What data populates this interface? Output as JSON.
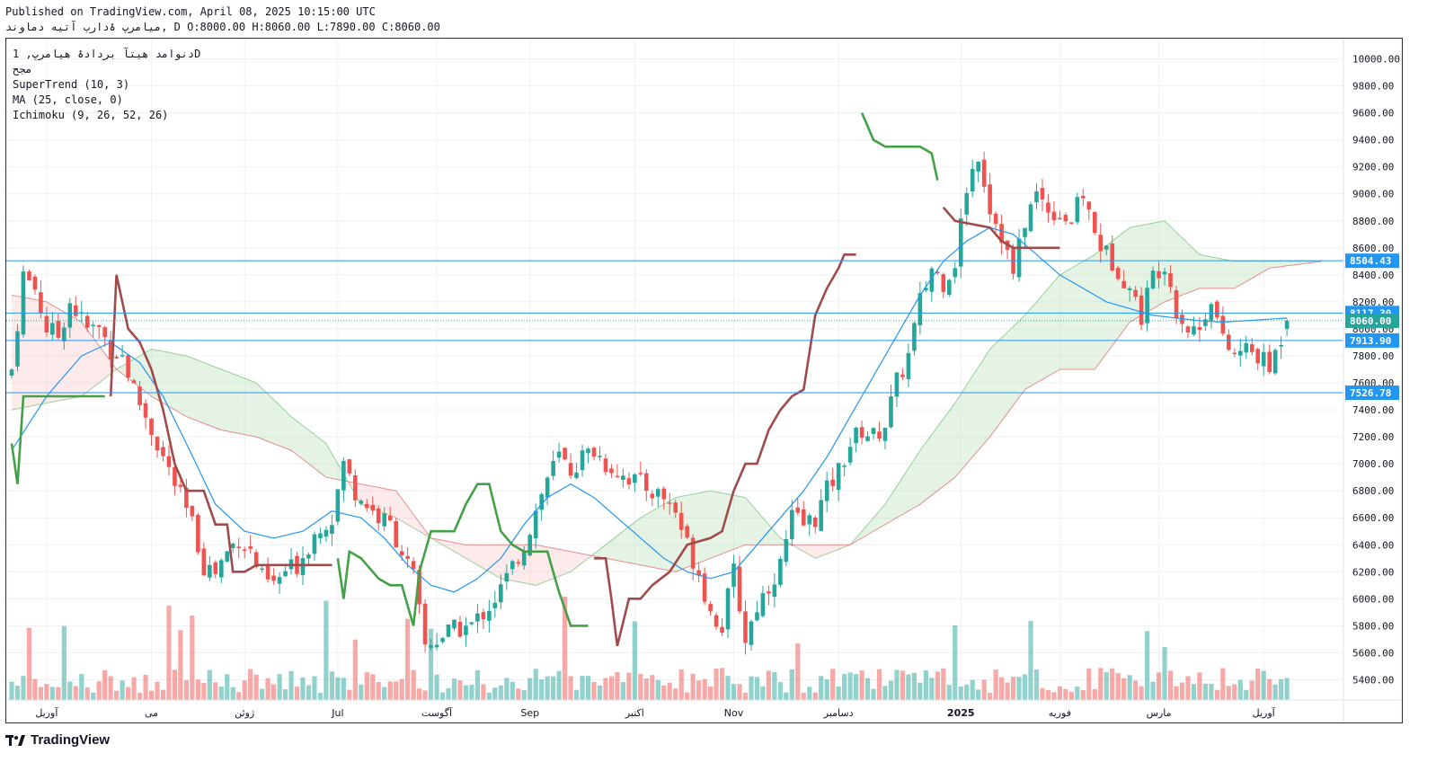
{
  "header": {
    "published": "Published on TradingView.com, April 08, 2025 10:15:00 UTC",
    "ohlc": "میامرپ ۀدارب آتیه دماوند, D O:8000.00 H:8060.00 L:7890.00 C:8060.00"
  },
  "legend": {
    "symbol": "دنوامد هیتآ بردادۀ هیامرپ, 1D",
    "exchange": "مجح",
    "supertrend": "SuperTrend (10, 3)",
    "ma": "MA (25, close, 0)",
    "ichimoku": "Ichimoku (9, 26, 52, 26)"
  },
  "brand": {
    "logo_text": "TradingView"
  },
  "colors": {
    "up": "#26a69a",
    "down": "#ef5350",
    "supertrend_up": "#43a047",
    "supertrend_down": "#a04a4a",
    "ma": "#2196f3",
    "hline": "#2196f3",
    "cloud_bull": "#a5d6a7",
    "cloud_bear": "#f8bbbb"
  },
  "chart_data": {
    "type": "candlestick",
    "y_axis": {
      "min": 5250,
      "max": 10150,
      "ticks": [
        5400,
        5600,
        5800,
        6000,
        6200,
        6400,
        6600,
        6800,
        7000,
        7200,
        7400,
        7600,
        7800,
        8000,
        8200,
        8400,
        8600,
        8800,
        9000,
        9200,
        9400,
        9600,
        9800,
        10000
      ]
    },
    "x_labels": [
      "آوریل",
      "می",
      "ژوئن",
      "Jul",
      "آگوست",
      "Sep",
      "اکتبر",
      "Nov",
      "دسامبر",
      "2025",
      "فوریه",
      "مارس",
      "آوریل"
    ],
    "x_label_bar_index": [
      6,
      24,
      40,
      56,
      73,
      89,
      107,
      124,
      142,
      163,
      180,
      197,
      215
    ],
    "price_labels": [
      {
        "text": "8504.43",
        "value": 8504.43
      },
      {
        "text": "8117.30",
        "value": 8117.3
      },
      {
        "text": "8060.00",
        "value": 8060.0
      },
      {
        "text": "7913.90",
        "value": 7913.9
      },
      {
        "text": "7526.78",
        "value": 7526.78
      }
    ],
    "hlines": [
      8504.43,
      8117.3,
      7913.9,
      7526.78
    ],
    "last_close": 8060.0,
    "bars_count": 220,
    "close_anchors": [
      [
        0,
        7700
      ],
      [
        2,
        8400
      ],
      [
        4,
        8300
      ],
      [
        6,
        8000
      ],
      [
        8,
        7950
      ],
      [
        10,
        8200
      ],
      [
        13,
        8000
      ],
      [
        15,
        8000
      ],
      [
        17,
        7850
      ],
      [
        19,
        7800
      ],
      [
        21,
        7550
      ],
      [
        23,
        7350
      ],
      [
        25,
        7150
      ],
      [
        27,
        6950
      ],
      [
        29,
        6750
      ],
      [
        31,
        6550
      ],
      [
        33,
        6250
      ],
      [
        35,
        6200
      ],
      [
        37,
        6350
      ],
      [
        39,
        6450
      ],
      [
        41,
        6350
      ],
      [
        43,
        6150
      ],
      [
        45,
        6100
      ],
      [
        47,
        6200
      ],
      [
        49,
        6250
      ],
      [
        51,
        6400
      ],
      [
        53,
        6550
      ],
      [
        55,
        6600
      ],
      [
        57,
        7000
      ],
      [
        59,
        6800
      ],
      [
        61,
        6700
      ],
      [
        63,
        6600
      ],
      [
        65,
        6550
      ],
      [
        67,
        6350
      ],
      [
        69,
        6150
      ],
      [
        71,
        5650
      ],
      [
        73,
        5700
      ],
      [
        75,
        5750
      ],
      [
        77,
        5780
      ],
      [
        79,
        5800
      ],
      [
        81,
        5900
      ],
      [
        83,
        6000
      ],
      [
        85,
        6150
      ],
      [
        88,
        6400
      ],
      [
        90,
        6650
      ],
      [
        92,
        6900
      ],
      [
        94,
        7050
      ],
      [
        96,
        6950
      ],
      [
        98,
        7050
      ],
      [
        100,
        7100
      ],
      [
        102,
        7000
      ],
      [
        104,
        6950
      ],
      [
        106,
        6900
      ],
      [
        108,
        6850
      ],
      [
        110,
        6800
      ],
      [
        112,
        6750
      ],
      [
        114,
        6650
      ],
      [
        116,
        6400
      ],
      [
        118,
        6200
      ],
      [
        120,
        5900
      ],
      [
        122,
        5800
      ],
      [
        124,
        6200
      ],
      [
        126,
        5700
      ],
      [
        128,
        5950
      ],
      [
        130,
        6100
      ],
      [
        132,
        6250
      ],
      [
        134,
        6600
      ],
      [
        136,
        6550
      ],
      [
        138,
        6600
      ],
      [
        140,
        6800
      ],
      [
        142,
        6950
      ],
      [
        144,
        7150
      ],
      [
        146,
        7250
      ],
      [
        148,
        7200
      ],
      [
        150,
        7300
      ],
      [
        152,
        7600
      ],
      [
        154,
        7800
      ],
      [
        156,
        8200
      ],
      [
        158,
        8450
      ],
      [
        160,
        8350
      ],
      [
        162,
        8500
      ],
      [
        164,
        9050
      ],
      [
        166,
        9300
      ],
      [
        168,
        8900
      ],
      [
        170,
        8700
      ],
      [
        172,
        8400
      ],
      [
        174,
        8800
      ],
      [
        176,
        9000
      ],
      [
        178,
        8900
      ],
      [
        180,
        8850
      ],
      [
        182,
        8800
      ],
      [
        184,
        9000
      ],
      [
        186,
        8700
      ],
      [
        188,
        8550
      ],
      [
        190,
        8450
      ],
      [
        192,
        8300
      ],
      [
        194,
        8100
      ],
      [
        196,
        8400
      ],
      [
        198,
        8500
      ],
      [
        200,
        8150
      ],
      [
        202,
        8000
      ],
      [
        204,
        8000
      ],
      [
        206,
        8250
      ],
      [
        208,
        7900
      ],
      [
        210,
        7800
      ],
      [
        212,
        7850
      ],
      [
        214,
        7800
      ],
      [
        216,
        7700
      ],
      [
        219,
        8060
      ]
    ],
    "supertrend_anchors": [
      [
        0,
        7150
      ],
      [
        1,
        6850
      ],
      [
        2,
        7500
      ],
      [
        17,
        7500
      ],
      [
        18,
        8400
      ],
      [
        20,
        8000
      ],
      [
        22,
        7900
      ],
      [
        24,
        7700
      ],
      [
        26,
        7400
      ],
      [
        28,
        7000
      ],
      [
        30,
        6800
      ],
      [
        33,
        6800
      ],
      [
        35,
        6550
      ],
      [
        37,
        6550
      ],
      [
        38,
        6200
      ],
      [
        40,
        6200
      ],
      [
        42,
        6250
      ],
      [
        55,
        6250
      ],
      [
        56,
        6300
      ],
      [
        57,
        6000
      ],
      [
        58,
        6350
      ],
      [
        60,
        6300
      ],
      [
        63,
        6150
      ],
      [
        65,
        6100
      ],
      [
        67,
        6100
      ],
      [
        69,
        5800
      ],
      [
        70,
        6200
      ],
      [
        72,
        6500
      ],
      [
        76,
        6500
      ],
      [
        78,
        6700
      ],
      [
        80,
        6850
      ],
      [
        82,
        6850
      ],
      [
        84,
        6500
      ],
      [
        86,
        6400
      ],
      [
        88,
        6350
      ],
      [
        92,
        6350
      ],
      [
        94,
        6050
      ],
      [
        96,
        5800
      ],
      [
        99,
        5800
      ],
      [
        100,
        6300
      ],
      [
        102,
        6300
      ],
      [
        103,
        6000
      ],
      [
        104,
        5650
      ],
      [
        106,
        6000
      ],
      [
        108,
        6000
      ],
      [
        110,
        6100
      ],
      [
        113,
        6200
      ],
      [
        116,
        6400
      ],
      [
        120,
        6450
      ],
      [
        122,
        6500
      ],
      [
        124,
        6800
      ],
      [
        126,
        7000
      ],
      [
        128,
        7000
      ],
      [
        130,
        7250
      ],
      [
        132,
        7400
      ],
      [
        134,
        7500
      ],
      [
        136,
        7550
      ],
      [
        138,
        8100
      ],
      [
        140,
        8300
      ],
      [
        142,
        8450
      ],
      [
        143,
        8550
      ],
      [
        145,
        8550
      ],
      [
        146,
        9600
      ],
      [
        148,
        9400
      ],
      [
        150,
        9350
      ],
      [
        156,
        9350
      ],
      [
        158,
        9300
      ],
      [
        160,
        8900
      ],
      [
        162,
        8800
      ],
      [
        168,
        8750
      ],
      [
        170,
        8650
      ],
      [
        172,
        8600
      ],
      [
        180,
        8600
      ]
    ],
    "supertrend_switch_dates": [
      17,
      56,
      100,
      146,
      160
    ],
    "ma_anchors": [
      [
        0,
        7100
      ],
      [
        6,
        7500
      ],
      [
        12,
        7800
      ],
      [
        17,
        7900
      ],
      [
        22,
        7750
      ],
      [
        26,
        7500
      ],
      [
        30,
        7150
      ],
      [
        35,
        6700
      ],
      [
        40,
        6500
      ],
      [
        45,
        6450
      ],
      [
        50,
        6500
      ],
      [
        55,
        6650
      ],
      [
        60,
        6600
      ],
      [
        64,
        6450
      ],
      [
        68,
        6250
      ],
      [
        72,
        6100
      ],
      [
        76,
        6050
      ],
      [
        80,
        6150
      ],
      [
        84,
        6300
      ],
      [
        88,
        6550
      ],
      [
        92,
        6750
      ],
      [
        96,
        6850
      ],
      [
        100,
        6750
      ],
      [
        104,
        6600
      ],
      [
        108,
        6450
      ],
      [
        112,
        6300
      ],
      [
        116,
        6200
      ],
      [
        120,
        6150
      ],
      [
        124,
        6200
      ],
      [
        128,
        6400
      ],
      [
        132,
        6600
      ],
      [
        136,
        6800
      ],
      [
        140,
        7050
      ],
      [
        144,
        7350
      ],
      [
        148,
        7650
      ],
      [
        152,
        7950
      ],
      [
        156,
        8250
      ],
      [
        160,
        8500
      ],
      [
        164,
        8650
      ],
      [
        168,
        8750
      ],
      [
        172,
        8700
      ],
      [
        176,
        8550
      ],
      [
        180,
        8400
      ],
      [
        184,
        8300
      ],
      [
        188,
        8200
      ],
      [
        192,
        8150
      ],
      [
        196,
        8100
      ],
      [
        200,
        8080
      ],
      [
        204,
        8060
      ],
      [
        208,
        8050
      ],
      [
        212,
        8060
      ],
      [
        219,
        8080
      ]
    ],
    "cloud_a_anchors": [
      [
        0,
        7400
      ],
      [
        6,
        7450
      ],
      [
        12,
        7500
      ],
      [
        18,
        7700
      ],
      [
        24,
        7850
      ],
      [
        30,
        7800
      ],
      [
        36,
        7700
      ],
      [
        42,
        7600
      ],
      [
        48,
        7350
      ],
      [
        54,
        7150
      ],
      [
        60,
        6700
      ],
      [
        66,
        6600
      ],
      [
        72,
        6450
      ],
      [
        78,
        6300
      ],
      [
        84,
        6150
      ],
      [
        90,
        6100
      ],
      [
        96,
        6200
      ],
      [
        102,
        6400
      ],
      [
        108,
        6600
      ],
      [
        114,
        6750
      ],
      [
        120,
        6800
      ],
      [
        126,
        6750
      ],
      [
        132,
        6450
      ],
      [
        138,
        6300
      ],
      [
        144,
        6400
      ],
      [
        150,
        6700
      ],
      [
        156,
        7100
      ],
      [
        162,
        7450
      ],
      [
        168,
        7850
      ],
      [
        174,
        8100
      ],
      [
        180,
        8400
      ],
      [
        186,
        8550
      ],
      [
        192,
        8750
      ],
      [
        198,
        8800
      ],
      [
        204,
        8550
      ],
      [
        210,
        8500
      ],
      [
        216,
        8500
      ],
      [
        225,
        8500
      ]
    ],
    "cloud_b_anchors": [
      [
        0,
        8250
      ],
      [
        6,
        8200
      ],
      [
        12,
        8050
      ],
      [
        18,
        7700
      ],
      [
        24,
        7500
      ],
      [
        30,
        7350
      ],
      [
        36,
        7250
      ],
      [
        42,
        7200
      ],
      [
        48,
        7100
      ],
      [
        54,
        6900
      ],
      [
        60,
        6850
      ],
      [
        66,
        6800
      ],
      [
        72,
        6450
      ],
      [
        78,
        6400
      ],
      [
        84,
        6400
      ],
      [
        90,
        6400
      ],
      [
        96,
        6350
      ],
      [
        102,
        6300
      ],
      [
        108,
        6250
      ],
      [
        114,
        6200
      ],
      [
        120,
        6300
      ],
      [
        126,
        6400
      ],
      [
        132,
        6400
      ],
      [
        138,
        6400
      ],
      [
        144,
        6400
      ],
      [
        150,
        6550
      ],
      [
        156,
        6700
      ],
      [
        162,
        6900
      ],
      [
        168,
        7200
      ],
      [
        174,
        7550
      ],
      [
        180,
        7700
      ],
      [
        186,
        7700
      ],
      [
        192,
        8050
      ],
      [
        198,
        8200
      ],
      [
        204,
        8300
      ],
      [
        210,
        8300
      ],
      [
        216,
        8450
      ],
      [
        225,
        8500
      ]
    ]
  }
}
